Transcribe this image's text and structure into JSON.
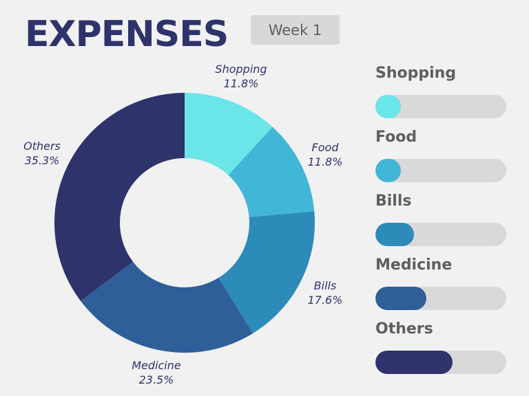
{
  "header": {
    "title": "EXPENSES",
    "week_label": "Week 1"
  },
  "chart_data": {
    "type": "pie",
    "subtype": "donut",
    "title": "EXPENSES",
    "subtitle": "Week 1",
    "categories": [
      "Shopping",
      "Food",
      "Bills",
      "Medicine",
      "Others"
    ],
    "values": [
      11.8,
      11.8,
      17.6,
      23.5,
      35.3
    ],
    "labels": [
      "11.8%",
      "11.8%",
      "17.6%",
      "23.5%",
      "35.3%"
    ],
    "colors": [
      "#6ae5e8",
      "#42b6d6",
      "#2d8bba",
      "#2f5f99",
      "#2e336b"
    ],
    "start_angle": "12 o'clock, clockwise",
    "legend_position": "right (progress bars)"
  },
  "legend": [
    {
      "label": "Shopping",
      "pct": 11.8,
      "color": "#6ae5e8"
    },
    {
      "label": "Food",
      "pct": 11.8,
      "color": "#42b6d6"
    },
    {
      "label": "Bills",
      "pct": 17.6,
      "color": "#2d8bba"
    },
    {
      "label": "Medicine",
      "pct": 23.5,
      "color": "#2f5f99"
    },
    {
      "label": "Others",
      "pct": 35.3,
      "color": "#2e336b"
    }
  ],
  "slice_labels": {
    "shopping": {
      "name": "Shopping",
      "value": "11.8%"
    },
    "food": {
      "name": "Food",
      "value": "11.8%"
    },
    "bills": {
      "name": "Bills",
      "value": "17.6%"
    },
    "medicine": {
      "name": "Medicine",
      "value": "23.5%"
    },
    "others": {
      "name": "Others",
      "value": "35.3%"
    }
  }
}
